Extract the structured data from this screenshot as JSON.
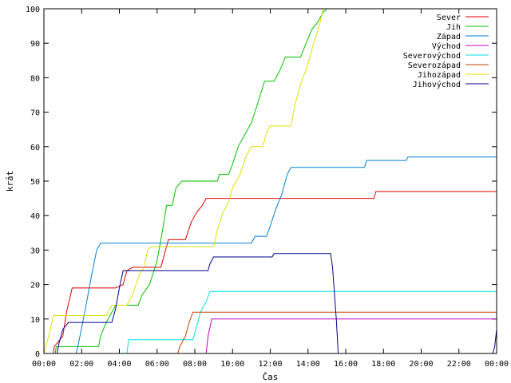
{
  "chart_data": {
    "type": "line",
    "xlabel": "Čas",
    "ylabel": "krát",
    "xlim": [
      0,
      24
    ],
    "ylim": [
      0,
      100
    ],
    "x_ticks": [
      {
        "value": 0,
        "label": "00:00"
      },
      {
        "value": 2,
        "label": "02:00"
      },
      {
        "value": 4,
        "label": "04:00"
      },
      {
        "value": 6,
        "label": "06:00"
      },
      {
        "value": 8,
        "label": "08:00"
      },
      {
        "value": 10,
        "label": "10:00"
      },
      {
        "value": 12,
        "label": "12:00"
      },
      {
        "value": 14,
        "label": "14:00"
      },
      {
        "value": 16,
        "label": "16:00"
      },
      {
        "value": 18,
        "label": "18:00"
      },
      {
        "value": 20,
        "label": "20:00"
      },
      {
        "value": 22,
        "label": "22:00"
      },
      {
        "value": 24,
        "label": "00:00"
      }
    ],
    "y_ticks": [
      0,
      10,
      20,
      30,
      40,
      50,
      60,
      70,
      80,
      90,
      100
    ],
    "legend_position": "top-right",
    "series": [
      {
        "name": "Sever",
        "color": "#e00000",
        "points": [
          [
            0.5,
            0
          ],
          [
            0.55,
            2
          ],
          [
            1.0,
            5
          ],
          [
            1.2,
            12
          ],
          [
            1.5,
            19
          ],
          [
            3.8,
            19
          ],
          [
            4.2,
            20
          ],
          [
            4.4,
            24
          ],
          [
            4.7,
            25
          ],
          [
            6.2,
            25
          ],
          [
            6.6,
            33
          ],
          [
            7.5,
            33
          ],
          [
            7.8,
            38
          ],
          [
            8.1,
            41
          ],
          [
            8.4,
            43
          ],
          [
            8.6,
            45
          ],
          [
            17.5,
            45
          ],
          [
            17.6,
            47
          ],
          [
            24,
            47
          ]
        ]
      },
      {
        "name": "Jih",
        "color": "#00c000",
        "points": [
          [
            0.6,
            0
          ],
          [
            0.65,
            2
          ],
          [
            2.9,
            2
          ],
          [
            3.0,
            5
          ],
          [
            3.3,
            9
          ],
          [
            3.6,
            12
          ],
          [
            3.8,
            14
          ],
          [
            5.0,
            14
          ],
          [
            5.2,
            17
          ],
          [
            5.6,
            20
          ],
          [
            6.0,
            27
          ],
          [
            6.3,
            36
          ],
          [
            6.5,
            43
          ],
          [
            6.8,
            43
          ],
          [
            7.0,
            48
          ],
          [
            7.3,
            50
          ],
          [
            9.2,
            50
          ],
          [
            9.3,
            52
          ],
          [
            9.8,
            52
          ],
          [
            10.0,
            55
          ],
          [
            10.3,
            60
          ],
          [
            10.7,
            64
          ],
          [
            11.0,
            67
          ],
          [
            11.3,
            72
          ],
          [
            11.7,
            79
          ],
          [
            12.2,
            79
          ],
          [
            12.5,
            82
          ],
          [
            12.8,
            86
          ],
          [
            13.6,
            86
          ],
          [
            13.9,
            90
          ],
          [
            14.2,
            94
          ],
          [
            14.5,
            96
          ],
          [
            14.8,
            99
          ],
          [
            15.0,
            100
          ]
        ]
      },
      {
        "name": "Západ",
        "color": "#0080d0",
        "points": [
          [
            1.7,
            0
          ],
          [
            1.8,
            2
          ],
          [
            2.2,
            13
          ],
          [
            2.5,
            22
          ],
          [
            2.8,
            30
          ],
          [
            3.0,
            32
          ],
          [
            11.0,
            32
          ],
          [
            11.2,
            34
          ],
          [
            11.8,
            34
          ],
          [
            12.0,
            37
          ],
          [
            12.3,
            42
          ],
          [
            12.6,
            46
          ],
          [
            12.9,
            52
          ],
          [
            13.1,
            54
          ],
          [
            17.0,
            54
          ],
          [
            17.1,
            56
          ],
          [
            19.2,
            56
          ],
          [
            19.3,
            57
          ],
          [
            24,
            57
          ]
        ]
      },
      {
        "name": "Východ",
        "color": "#c000c0",
        "points": [
          [
            8.6,
            0
          ],
          [
            8.7,
            5
          ],
          [
            8.9,
            10
          ],
          [
            24,
            10
          ]
        ]
      },
      {
        "name": "Severovýchod",
        "color": "#00e0e0",
        "points": [
          [
            4.4,
            0
          ],
          [
            4.5,
            4
          ],
          [
            7.9,
            4
          ],
          [
            8.1,
            8
          ],
          [
            8.3,
            12
          ],
          [
            8.6,
            15
          ],
          [
            8.8,
            18
          ],
          [
            24,
            18
          ]
        ]
      },
      {
        "name": "Severozápad",
        "color": "#c04000",
        "points": [
          [
            7.1,
            0
          ],
          [
            7.2,
            2
          ],
          [
            7.5,
            5
          ],
          [
            7.7,
            9
          ],
          [
            7.9,
            12
          ],
          [
            24,
            12
          ]
        ]
      },
      {
        "name": "Jihozápad",
        "color": "#e0e000",
        "points": [
          [
            0.0,
            0
          ],
          [
            0.1,
            2
          ],
          [
            0.3,
            6
          ],
          [
            0.5,
            11
          ],
          [
            3.3,
            11
          ],
          [
            3.6,
            14
          ],
          [
            4.4,
            14
          ],
          [
            4.7,
            17
          ],
          [
            5.0,
            22
          ],
          [
            5.3,
            25
          ],
          [
            5.5,
            30
          ],
          [
            5.7,
            31
          ],
          [
            9.0,
            31
          ],
          [
            9.2,
            36
          ],
          [
            9.5,
            41
          ],
          [
            9.8,
            44
          ],
          [
            10.0,
            48
          ],
          [
            10.4,
            52
          ],
          [
            10.7,
            57
          ],
          [
            11.0,
            60
          ],
          [
            11.6,
            60
          ],
          [
            11.8,
            64
          ],
          [
            12.0,
            66
          ],
          [
            13.1,
            66
          ],
          [
            13.3,
            72
          ],
          [
            13.6,
            78
          ],
          [
            14.0,
            84
          ],
          [
            14.3,
            90
          ],
          [
            14.6,
            95
          ],
          [
            14.8,
            100
          ]
        ]
      },
      {
        "name": "Jihovýchod",
        "color": "#000090",
        "points": [
          [
            0.7,
            0
          ],
          [
            0.8,
            3
          ],
          [
            1.0,
            7
          ],
          [
            1.3,
            9
          ],
          [
            3.6,
            9
          ],
          [
            3.8,
            13
          ],
          [
            4.0,
            19
          ],
          [
            4.2,
            24
          ],
          [
            8.7,
            24
          ],
          [
            8.8,
            26
          ],
          [
            9.0,
            28
          ],
          [
            12.1,
            28
          ],
          [
            12.2,
            29
          ],
          [
            15.2,
            29
          ],
          [
            15.3,
            25
          ],
          [
            15.5,
            10
          ],
          [
            15.6,
            0
          ],
          [
            23.8,
            0
          ],
          [
            23.9,
            2
          ],
          [
            24.0,
            7
          ]
        ]
      }
    ]
  }
}
